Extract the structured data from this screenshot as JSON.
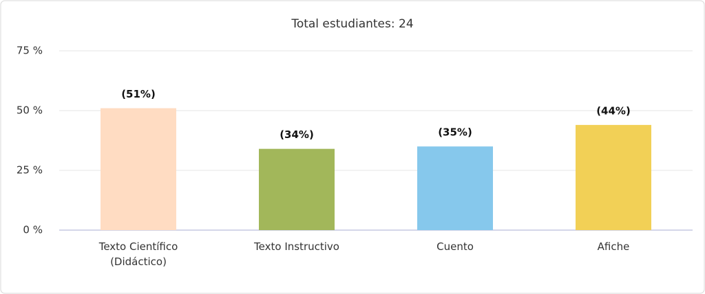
{
  "chart_data": {
    "type": "bar",
    "title": "Total estudiantes: 24",
    "categories": [
      "Texto Científico (Didáctico)",
      "Texto Instructivo",
      "Cuento",
      "Afiche"
    ],
    "values": [
      51,
      34,
      35,
      44
    ],
    "value_labels": [
      "(51%)",
      "(34%)",
      "(35%)",
      "(44%)"
    ],
    "colors": [
      "#ffdcc2",
      "#a2b75a",
      "#86c8ec",
      "#f2d056"
    ],
    "ylim": [
      0,
      75
    ],
    "yticks": [
      {
        "value": 0,
        "label": "0 %"
      },
      {
        "value": 25,
        "label": "25 %"
      },
      {
        "value": 50,
        "label": "50 %"
      },
      {
        "value": 75,
        "label": "75 %"
      }
    ],
    "grid": true
  }
}
